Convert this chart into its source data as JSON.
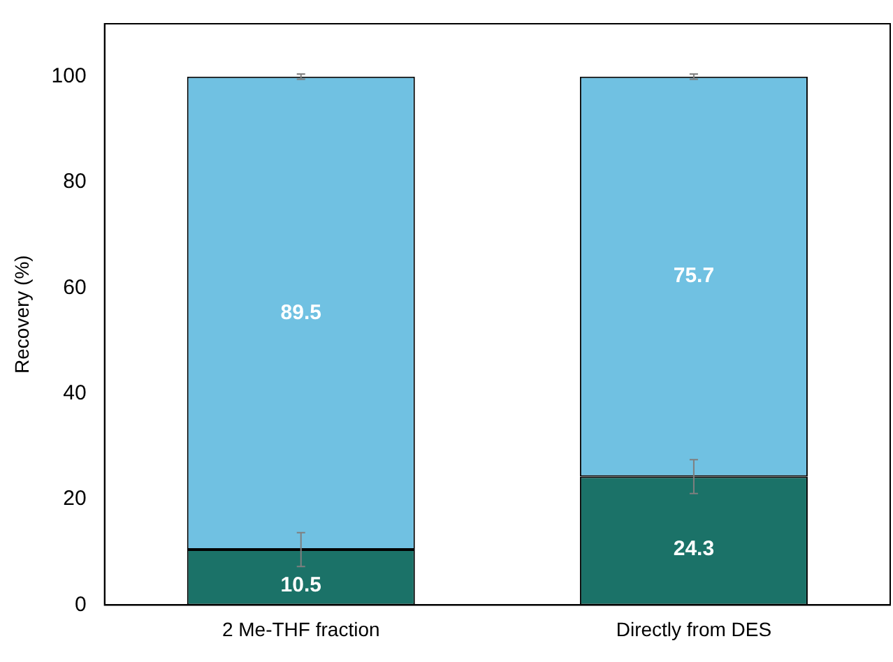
{
  "chart_data": {
    "type": "bar",
    "stacked": true,
    "ylabel": "Recovery (%)",
    "categories": [
      "2 Me-THF fraction",
      "Directly from DES"
    ],
    "series": [
      {
        "color": "#1b7268",
        "values": [
          10.5,
          24.3
        ],
        "errors": [
          3.2,
          3.2
        ]
      },
      {
        "color": "#70c1e2",
        "values": [
          89.5,
          75.7
        ],
        "errors": [
          0.5,
          0.5
        ]
      }
    ],
    "ylim": [
      0,
      110
    ],
    "yticks": [
      0,
      20,
      40,
      60,
      80,
      100
    ],
    "grid": false,
    "legend": false,
    "data_labels": true
  }
}
